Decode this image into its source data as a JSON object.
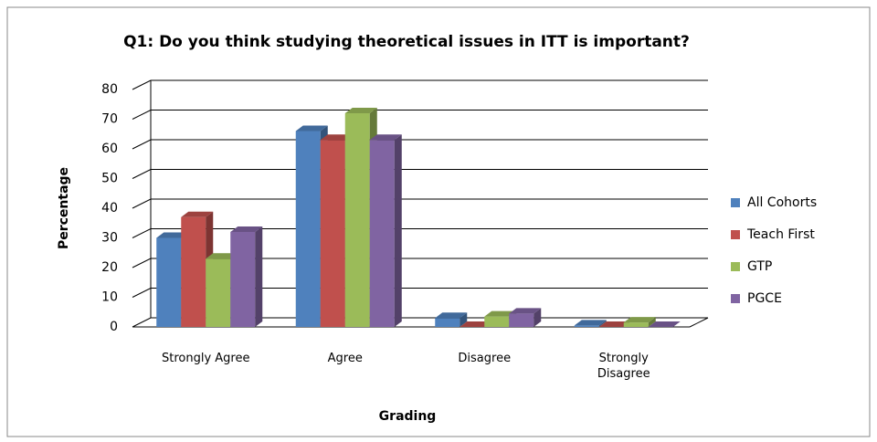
{
  "chart_data": {
    "type": "bar3d",
    "title": "Q1: Do you think studying theoretical issues in ITT is important?",
    "x_label": "Grading",
    "y_label": "Percentage",
    "categories": [
      "Strongly Agree",
      "Agree",
      "Disagree",
      "Strongly Disagree"
    ],
    "series": [
      {
        "name": "All Cohorts",
        "color": "#4f81bd",
        "values": [
          30,
          66,
          3,
          0.5
        ]
      },
      {
        "name": "Teach First",
        "color": "#c0504d",
        "values": [
          37,
          63,
          0,
          0
        ]
      },
      {
        "name": "GTP",
        "color": "#9bbb59",
        "values": [
          23,
          72,
          3.5,
          1.5
        ]
      },
      {
        "name": "PGCE",
        "color": "#8064a2",
        "values": [
          32,
          63,
          4.5,
          0
        ]
      }
    ],
    "ylim": [
      0,
      80
    ],
    "yticks": [
      0,
      10,
      20,
      30,
      40,
      50,
      60,
      70,
      80
    ],
    "grid": true,
    "legend": "right"
  }
}
